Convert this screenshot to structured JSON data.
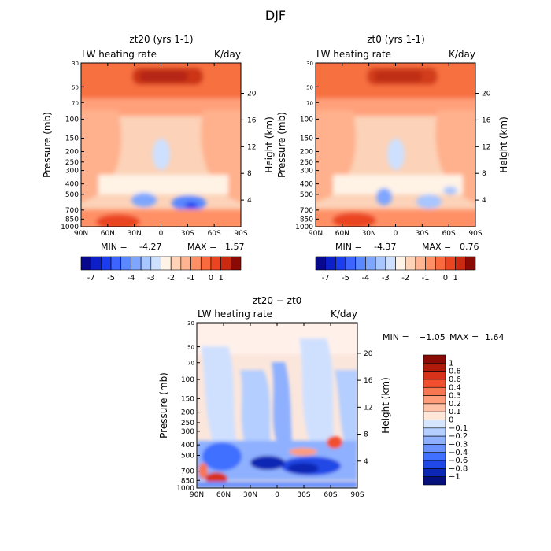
{
  "figure": {
    "title": "DJF",
    "colors": {
      "frame": "#000000",
      "background": "#ffffff"
    }
  },
  "chart_data": [
    {
      "type": "heatmap",
      "id": "p1",
      "title": "zt20 (yrs 1-1)",
      "subtitle_left": "LW heating rate",
      "subtitle_right": "K/day",
      "xlabel": "",
      "ylabel": "Pressure (mb)",
      "y2label": "Height (km)",
      "x_ticks": [
        "90N",
        "60N",
        "30N",
        "0",
        "30S",
        "60S",
        "90S"
      ],
      "x_range": [
        90,
        -90
      ],
      "y_ticks": [
        30,
        50,
        70,
        100,
        150,
        200,
        250,
        300,
        400,
        500,
        700,
        850,
        1000
      ],
      "y_range": [
        30,
        1000
      ],
      "y2_ticks": [
        4,
        8,
        12,
        16,
        20
      ],
      "stats": {
        "min_label": "MIN =",
        "min": "-4.27",
        "max_label": "MAX =",
        "max": "1.57"
      },
      "colorbar": {
        "orientation": "horizontal",
        "tick_labels": [
          "-7",
          "-5",
          "-4",
          "-3",
          "-2",
          "-1",
          "0",
          "1"
        ],
        "levels": [
          -7,
          -6,
          -5,
          -4.5,
          -4,
          -3.5,
          -3,
          -2.5,
          -2,
          -1.5,
          -1,
          -0.5,
          0,
          0.5,
          1
        ],
        "colors": [
          "#08088c",
          "#0d1fc6",
          "#1c3cf0",
          "#3e64ff",
          "#5a88ff",
          "#7ea6ff",
          "#a8c6ff",
          "#cde0ff",
          "#fff3e6",
          "#ffd3b8",
          "#ffb592",
          "#ff9066",
          "#f96a3e",
          "#ea4520",
          "#c92a10",
          "#8a0a05"
        ]
      }
    },
    {
      "type": "heatmap",
      "id": "p2",
      "title": "zt0 (yrs 1-1)",
      "subtitle_left": "LW heating rate",
      "subtitle_right": "K/day",
      "xlabel": "",
      "ylabel": "Pressure (mb)",
      "y2label": "Height (km)",
      "x_ticks": [
        "90N",
        "60N",
        "30N",
        "0",
        "30S",
        "60S",
        "90S"
      ],
      "x_range": [
        90,
        -90
      ],
      "y_ticks": [
        30,
        50,
        70,
        100,
        150,
        200,
        250,
        300,
        400,
        500,
        700,
        850,
        1000
      ],
      "y_range": [
        30,
        1000
      ],
      "y2_ticks": [
        4,
        8,
        12,
        16,
        20
      ],
      "stats": {
        "min_label": "MIN =",
        "min": "-4.37",
        "max_label": "MAX =",
        "max": "0.76"
      },
      "colorbar": {
        "orientation": "horizontal",
        "tick_labels": [
          "-7",
          "-5",
          "-4",
          "-3",
          "-2",
          "-1",
          "0",
          "1"
        ],
        "levels": [
          -7,
          -6,
          -5,
          -4.5,
          -4,
          -3.5,
          -3,
          -2.5,
          -2,
          -1.5,
          -1,
          -0.5,
          0,
          0.5,
          1
        ],
        "colors": [
          "#08088c",
          "#0d1fc6",
          "#1c3cf0",
          "#3e64ff",
          "#5a88ff",
          "#7ea6ff",
          "#a8c6ff",
          "#cde0ff",
          "#fff3e6",
          "#ffd3b8",
          "#ffb592",
          "#ff9066",
          "#f96a3e",
          "#ea4520",
          "#c92a10",
          "#8a0a05"
        ]
      }
    },
    {
      "type": "heatmap",
      "id": "p3",
      "title": "zt20 − zt0",
      "subtitle_left": "LW heating rate",
      "subtitle_right": "K/day",
      "xlabel": "",
      "ylabel": "Pressure (mb)",
      "y2label": "Height (km)",
      "x_ticks": [
        "90N",
        "60N",
        "30N",
        "0",
        "30S",
        "60S",
        "90S"
      ],
      "x_range": [
        90,
        -90
      ],
      "y_ticks": [
        30,
        50,
        70,
        100,
        150,
        200,
        250,
        300,
        400,
        500,
        700,
        850,
        1000
      ],
      "y_range": [
        30,
        1000
      ],
      "y2_ticks": [
        4,
        8,
        12,
        16,
        20
      ],
      "stats": {
        "min_label": "MIN =",
        "min": "−1.05",
        "max_label": "MAX =",
        "max": "1.64"
      },
      "colorbar": {
        "orientation": "vertical",
        "tick_labels": [
          "1",
          "0.8",
          "0.6",
          "0.4",
          "0.3",
          "0.2",
          "0.1",
          "0",
          "−0.1",
          "−0.2",
          "−0.3",
          "−0.4",
          "−0.6",
          "−0.8",
          "−1"
        ],
        "colors": [
          "#8a0a05",
          "#b01a0a",
          "#d8321a",
          "#f0502d",
          "#f87652",
          "#ff9c7a",
          "#ffc2a6",
          "#fee6d8",
          "#d6e6ff",
          "#b4ceff",
          "#8eb0ff",
          "#6a92ff",
          "#4070ff",
          "#2048e6",
          "#0a28b4",
          "#06107a"
        ]
      }
    }
  ]
}
